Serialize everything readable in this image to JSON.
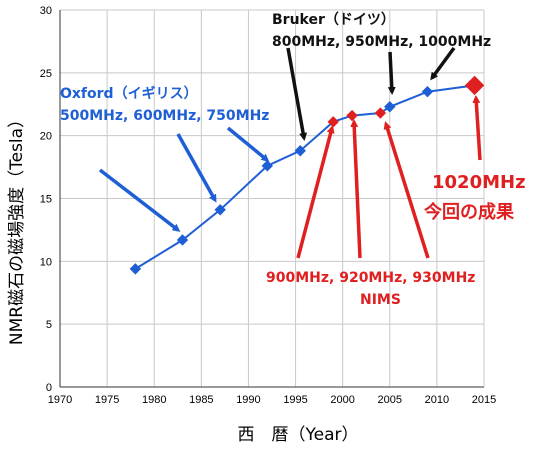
{
  "chart_data": {
    "type": "line",
    "xlabel": "西　暦（Year）",
    "ylabel": "NMR磁石の磁場強度（Tesla）",
    "xlim": [
      1970,
      2015
    ],
    "ylim": [
      0,
      30
    ],
    "xticks": [
      "1970",
      "1975",
      "1980",
      "1985",
      "1990",
      "1995",
      "2000",
      "2005",
      "2010",
      "2015"
    ],
    "yticks": [
      "0",
      "5",
      "10",
      "15",
      "20",
      "25",
      "30"
    ],
    "grid": true,
    "series": [
      {
        "color": "#1f5fd6",
        "points": [
          {
            "x": 1978,
            "y": 9.4,
            "color": "#1f5fd6",
            "marker": "diamond-small"
          },
          {
            "x": 1983,
            "y": 11.7,
            "color": "#1f5fd6",
            "marker": "diamond-small"
          },
          {
            "x": 1987,
            "y": 14.1,
            "color": "#1f5fd6",
            "marker": "diamond-small"
          },
          {
            "x": 1992,
            "y": 17.6,
            "color": "#1f5fd6",
            "marker": "diamond-small"
          },
          {
            "x": 1995.5,
            "y": 18.8,
            "color": "#1f5fd6",
            "marker": "diamond-small"
          },
          {
            "x": 1999,
            "y": 21.1,
            "color": "#e02020",
            "marker": "diamond-small"
          },
          {
            "x": 2001,
            "y": 21.6,
            "color": "#e02020",
            "marker": "diamond-small"
          },
          {
            "x": 2004,
            "y": 21.8,
            "color": "#e02020",
            "marker": "diamond-small"
          },
          {
            "x": 2005,
            "y": 22.3,
            "color": "#1f5fd6",
            "marker": "diamond-small"
          },
          {
            "x": 2009,
            "y": 23.5,
            "color": "#1f5fd6",
            "marker": "diamond-small"
          },
          {
            "x": 2014,
            "y": 24.0,
            "color": "#e02020",
            "marker": "diamond-large"
          }
        ]
      }
    ],
    "annotations": {
      "oxford_line1": "Oxford（イギリス）",
      "oxford_line2": "500MHz, 600MHz, 750MHz",
      "bruker_line1": "Bruker（ドイツ）",
      "bruker_line2": "800MHz, 950MHz, 1000MHz",
      "nims_line1": "900MHz, 920MHz, 930MHz",
      "nims_line2": "NIMS",
      "result_line1": "1020MHz",
      "result_line2": "今回の成果"
    },
    "colors": {
      "blue": "#1f5fd6",
      "red": "#e02020",
      "black": "#111111",
      "grid": "#c8c8c8"
    }
  }
}
